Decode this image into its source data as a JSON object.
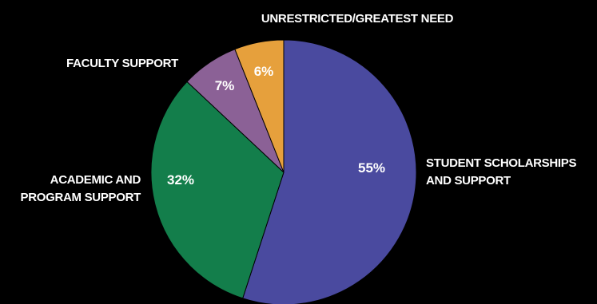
{
  "chart_data": {
    "type": "pie",
    "title": "",
    "slices": [
      {
        "label_lines": [
          "STUDENT SCHOLARSHIPS",
          "AND SUPPORT"
        ],
        "value": 55,
        "value_label": "55%",
        "color": "#4a4a9f"
      },
      {
        "label_lines": [
          "ACADEMIC AND",
          "PROGRAM SUPPORT"
        ],
        "value": 32,
        "value_label": "32%",
        "color": "#137e4b"
      },
      {
        "label_lines": [
          "FACULTY SUPPORT"
        ],
        "value": 7,
        "value_label": "7%",
        "color": "#8b6196"
      },
      {
        "label_lines": [
          "UNRESTRICTED/GREATEST NEED"
        ],
        "value": 6,
        "value_label": "6%",
        "color": "#e6a03c"
      }
    ],
    "start_angle_deg": 0,
    "direction": "clockwise",
    "legend": "none"
  },
  "colors": {
    "background": "#000000",
    "text": "#ffffff",
    "slice_border": "#000000"
  }
}
